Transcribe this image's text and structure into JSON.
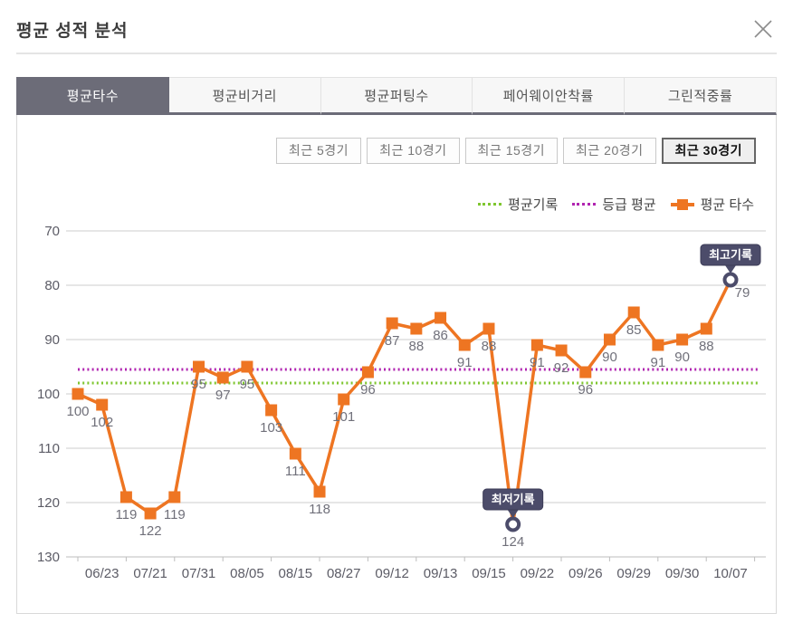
{
  "window": {
    "title": "평균 성적 분석",
    "close_label": "close"
  },
  "tabs": {
    "items": [
      {
        "label": "평균타수",
        "selected": true
      },
      {
        "label": "평균비거리",
        "selected": false
      },
      {
        "label": "평균퍼팅수",
        "selected": false
      },
      {
        "label": "페어웨이안착률",
        "selected": false
      },
      {
        "label": "그린적중률",
        "selected": false
      }
    ]
  },
  "period_filters": {
    "items": [
      {
        "label": "최근 5경기",
        "selected": false
      },
      {
        "label": "최근 10경기",
        "selected": false
      },
      {
        "label": "최근 15경기",
        "selected": false
      },
      {
        "label": "최근 20경기",
        "selected": false
      },
      {
        "label": "최근 30경기",
        "selected": true
      }
    ]
  },
  "legend": {
    "items": [
      {
        "label": "평균기록",
        "color": "#7ec62f",
        "type": "dotted"
      },
      {
        "label": "등급 평균",
        "color": "#b024b0",
        "type": "dotted"
      },
      {
        "label": "평균 타수",
        "color": "#ee7522",
        "type": "line-marker"
      }
    ]
  },
  "chart_data": {
    "type": "line",
    "title": "평균 성적 분석 - 평균타수 (최근 30경기)",
    "series": [
      {
        "name": "평균 타수",
        "color": "#ee7522",
        "values": [
          100,
          102,
          119,
          122,
          119,
          95,
          97,
          95,
          103,
          111,
          118,
          101,
          96,
          87,
          88,
          86,
          91,
          88,
          124,
          91,
          92,
          96,
          90,
          85,
          91,
          90,
          88,
          79
        ]
      }
    ],
    "x_tick_labels": [
      "06/23",
      "07/21",
      "07/31",
      "08/05",
      "08/15",
      "08/27",
      "09/12",
      "09/13",
      "09/15",
      "09/22",
      "09/26",
      "09/29",
      "09/30",
      "10/07"
    ],
    "x_label_under_every_nth_point": 2,
    "y_ticks": [
      70,
      80,
      90,
      100,
      110,
      120,
      130
    ],
    "ylim": [
      70,
      130
    ],
    "y_inverted": true,
    "grid": true,
    "legend_position": "top-right",
    "reference_lines": [
      {
        "name": "평균기록",
        "value": 98,
        "color": "#7ec62f",
        "style": "dotted"
      },
      {
        "name": "등급 평균",
        "value": 95.5,
        "color": "#b024b0",
        "style": "dotted"
      }
    ],
    "annotations": [
      {
        "label": "최고기록",
        "point_index": 27,
        "value": 79
      },
      {
        "label": "최저기록",
        "point_index": 18,
        "value": 124
      }
    ],
    "annotation_color": "#4c4c6a",
    "value_label_color": "#70707a",
    "axis_label_color": "#5c5c66"
  }
}
